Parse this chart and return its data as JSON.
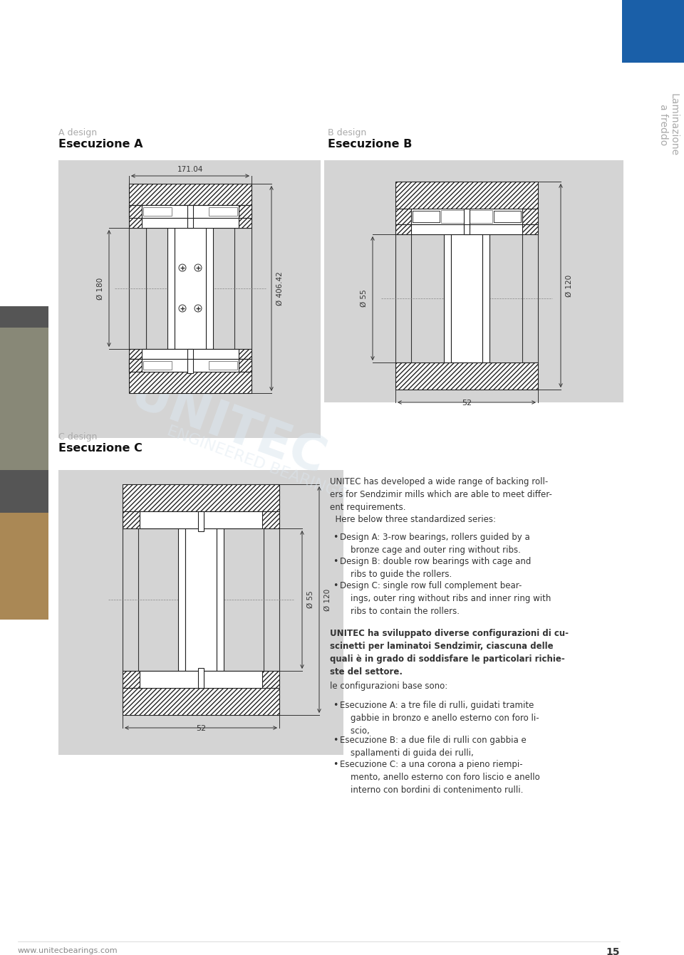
{
  "page_bg": "#ffffff",
  "gray_box_bg": "#d4d4d4",
  "blue_color": "#1a5fa8",
  "text_gray": "#aaaaaa",
  "text_dark": "#333333",
  "sidebar_text_1": "Laminazione",
  "sidebar_text_2": "a freddo",
  "label_A_design": "A design",
  "label_A_esec": "Esecuzione A",
  "label_B_design": "B design",
  "label_B_esec": "Esecuzione B",
  "label_C_design": "C design",
  "label_C_esec": "Esecuzione C",
  "dim_A_width": "171.04",
  "dim_A_od": "Ø 180",
  "dim_A_bore": "Ø 406.42",
  "dim_B_id": "Ø 55",
  "dim_B_od": "Ø 120",
  "dim_B_width": "52",
  "dim_C_id": "Ø 55",
  "dim_C_od": "Ø 120",
  "dim_C_width": "52",
  "footer_web": "www.unitecbearings.com",
  "footer_page": "15"
}
